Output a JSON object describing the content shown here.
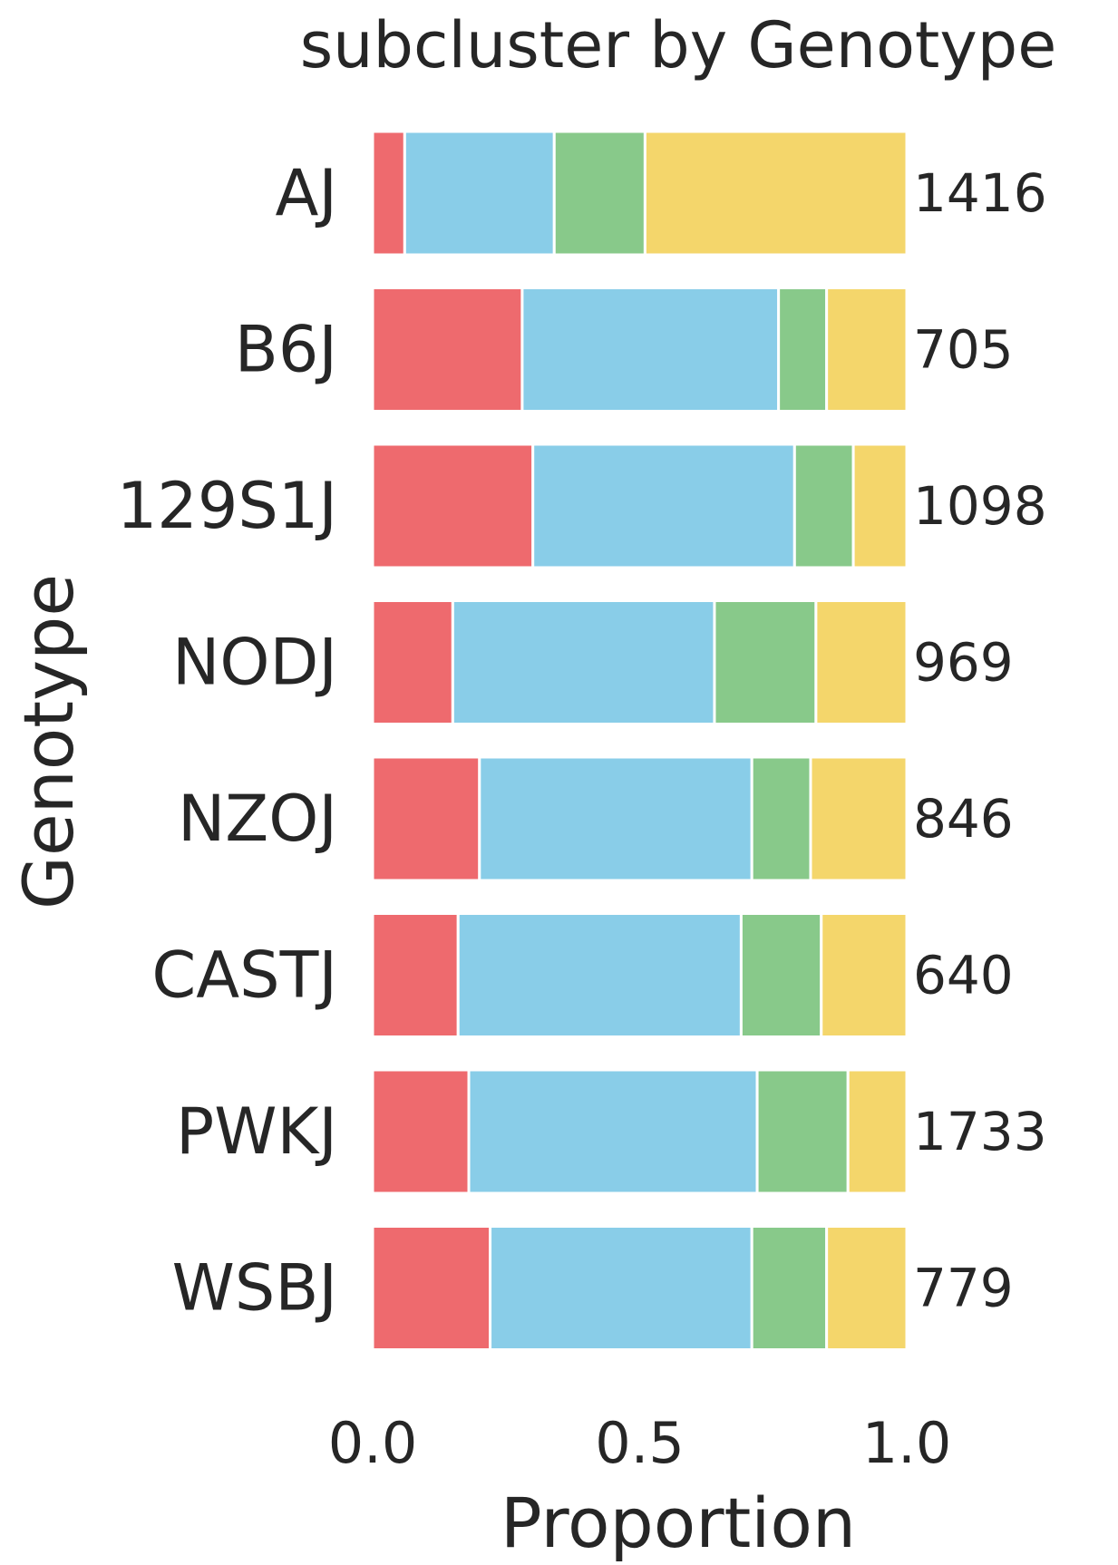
{
  "chart_data": {
    "type": "bar",
    "orientation": "horizontal",
    "stacked": true,
    "title": "subcluster by Genotype",
    "xlabel": "Proportion",
    "ylabel": "Genotype",
    "xlim": [
      0,
      1
    ],
    "xticks": [
      "0.0",
      "0.5",
      "1.0"
    ],
    "categories": [
      "AJ",
      "B6J",
      "129S1J",
      "NODJ",
      "NZOJ",
      "CASTJ",
      "PWKJ",
      "WSBJ"
    ],
    "counts": [
      "1416",
      "705",
      "1098",
      "969",
      "846",
      "640",
      "1733",
      "779"
    ],
    "series_colors": [
      "#ee6a6e",
      "#89cde8",
      "#88c98a",
      "#f4d66b"
    ],
    "series": [
      {
        "values": [
          0.06,
          0.28,
          0.3,
          0.15,
          0.2,
          0.16,
          0.18,
          0.22
        ]
      },
      {
        "values": [
          0.28,
          0.48,
          0.49,
          0.49,
          0.51,
          0.53,
          0.54,
          0.49
        ]
      },
      {
        "values": [
          0.17,
          0.09,
          0.11,
          0.19,
          0.11,
          0.15,
          0.17,
          0.14
        ]
      },
      {
        "values": [
          0.49,
          0.15,
          0.1,
          0.17,
          0.18,
          0.16,
          0.11,
          0.15
        ]
      }
    ],
    "grid": false,
    "legend": "none"
  }
}
